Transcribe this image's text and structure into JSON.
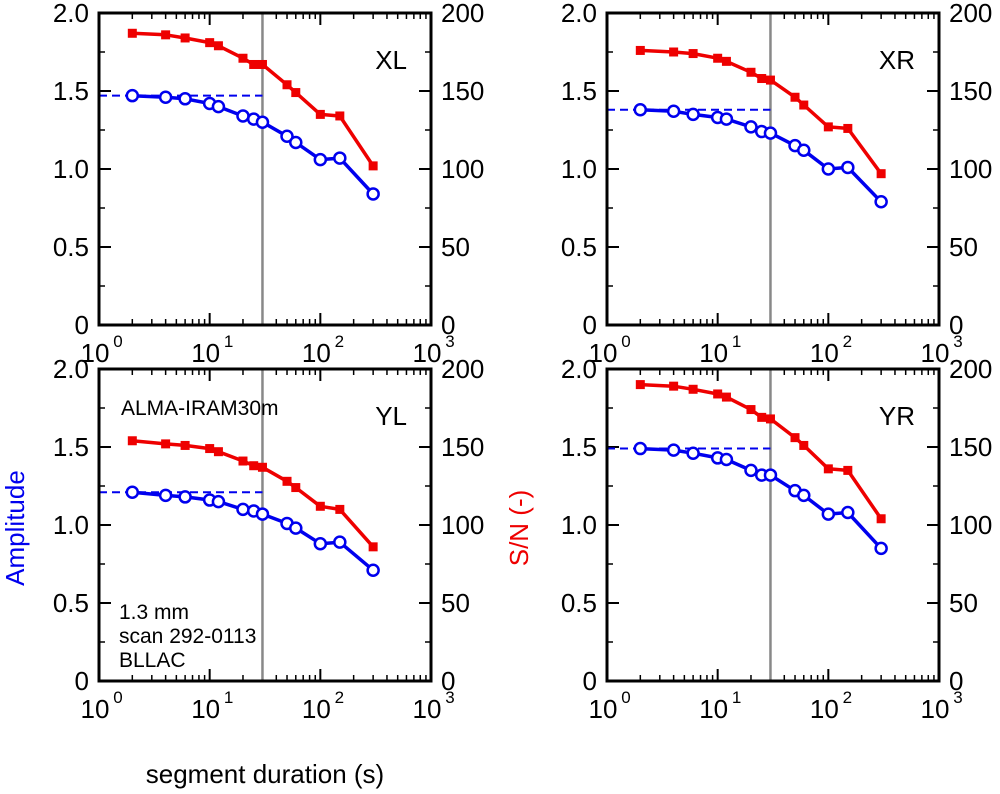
{
  "figure": {
    "xlabel": "segment duration (s)",
    "ylabel_left": "Amplitude",
    "ylabel_right": "S/N (-)",
    "ylabel_left_color": "#0000ee",
    "ylabel_right_color": "#ee0000"
  },
  "chart_data": [
    {
      "type": "line",
      "panel_label": "XL",
      "xscale": "log",
      "xlim": [
        1,
        1000
      ],
      "x_ticks": [
        {
          "base": "10",
          "exp": "0"
        },
        {
          "base": "10",
          "exp": "1"
        },
        {
          "base": "10",
          "exp": "2"
        },
        {
          "base": "10",
          "exp": "3"
        }
      ],
      "ylim_left": [
        0,
        2.0
      ],
      "ylim_right": [
        0,
        200
      ],
      "left_ticks": [
        "0",
        "0.5",
        "1.0",
        "1.5",
        "2.0"
      ],
      "right_ticks": [
        "0",
        "50",
        "100",
        "150",
        "200"
      ],
      "vline_x": 30,
      "hline": {
        "y": 1.47,
        "x_range": [
          1,
          30
        ]
      },
      "annotations": [],
      "series": [
        {
          "name": "Amplitude",
          "axis": "left",
          "color": "#0000ee",
          "marker": "open-circle",
          "x": [
            2,
            4,
            6,
            10,
            12,
            20,
            25,
            30,
            50,
            60,
            100,
            150,
            300
          ],
          "y": [
            1.47,
            1.46,
            1.45,
            1.42,
            1.4,
            1.34,
            1.32,
            1.3,
            1.21,
            1.17,
            1.06,
            1.07,
            0.84
          ]
        },
        {
          "name": "S/N",
          "axis": "right",
          "color": "#ee0000",
          "marker": "filled-square",
          "x": [
            2,
            4,
            6,
            10,
            12,
            20,
            25,
            30,
            50,
            60,
            100,
            150,
            300
          ],
          "y": [
            187,
            186,
            184,
            181,
            179,
            171,
            167,
            167,
            154,
            149,
            135,
            134,
            102
          ]
        }
      ]
    },
    {
      "type": "line",
      "panel_label": "XR",
      "xscale": "log",
      "xlim": [
        1,
        1000
      ],
      "x_ticks": [
        {
          "base": "10",
          "exp": "0"
        },
        {
          "base": "10",
          "exp": "1"
        },
        {
          "base": "10",
          "exp": "2"
        },
        {
          "base": "10",
          "exp": "3"
        }
      ],
      "ylim_left": [
        0,
        2.0
      ],
      "ylim_right": [
        0,
        200
      ],
      "left_ticks": [
        "0",
        "0.5",
        "1.0",
        "1.5",
        "2.0"
      ],
      "right_ticks": [
        "0",
        "50",
        "100",
        "150",
        "200"
      ],
      "vline_x": 30,
      "hline": {
        "y": 1.38,
        "x_range": [
          1,
          30
        ]
      },
      "annotations": [],
      "series": [
        {
          "name": "Amplitude",
          "axis": "left",
          "color": "#0000ee",
          "marker": "open-circle",
          "x": [
            2,
            4,
            6,
            10,
            12,
            20,
            25,
            30,
            50,
            60,
            100,
            150,
            300
          ],
          "y": [
            1.38,
            1.37,
            1.35,
            1.33,
            1.32,
            1.27,
            1.24,
            1.23,
            1.15,
            1.12,
            1.0,
            1.01,
            0.79
          ]
        },
        {
          "name": "S/N",
          "axis": "right",
          "color": "#ee0000",
          "marker": "filled-square",
          "x": [
            2,
            4,
            6,
            10,
            12,
            20,
            25,
            30,
            50,
            60,
            100,
            150,
            300
          ],
          "y": [
            176,
            175,
            174,
            171,
            169,
            162,
            158,
            157,
            146,
            141,
            127,
            126,
            97
          ]
        }
      ]
    },
    {
      "type": "line",
      "panel_label": "YL",
      "xscale": "log",
      "xlim": [
        1,
        1000
      ],
      "x_ticks": [
        {
          "base": "10",
          "exp": "0"
        },
        {
          "base": "10",
          "exp": "1"
        },
        {
          "base": "10",
          "exp": "2"
        },
        {
          "base": "10",
          "exp": "3"
        }
      ],
      "ylim_left": [
        0,
        2.0
      ],
      "ylim_right": [
        0,
        200
      ],
      "left_ticks": [
        "0",
        "0.5",
        "1.0",
        "1.5",
        "2.0"
      ],
      "right_ticks": [
        "0",
        "50",
        "100",
        "150",
        "200"
      ],
      "vline_x": 30,
      "hline": {
        "y": 1.21,
        "x_range": [
          1,
          30
        ]
      },
      "annotations": [
        {
          "text": "ALMA-IRAM30m",
          "pos": "top-left"
        },
        {
          "text": "1.3 mm",
          "pos": "bottom-left-1"
        },
        {
          "text": "scan 292-0113",
          "pos": "bottom-left-2"
        },
        {
          "text": "BLLAC",
          "pos": "bottom-left-3"
        }
      ],
      "series": [
        {
          "name": "Amplitude",
          "axis": "left",
          "color": "#0000ee",
          "marker": "open-circle",
          "x": [
            2,
            4,
            6,
            10,
            12,
            20,
            25,
            30,
            50,
            60,
            100,
            150,
            300
          ],
          "y": [
            1.21,
            1.19,
            1.18,
            1.16,
            1.15,
            1.1,
            1.09,
            1.07,
            1.01,
            0.98,
            0.88,
            0.89,
            0.71
          ]
        },
        {
          "name": "S/N",
          "axis": "right",
          "color": "#ee0000",
          "marker": "filled-square",
          "x": [
            2,
            4,
            6,
            10,
            12,
            20,
            25,
            30,
            50,
            60,
            100,
            150,
            300
          ],
          "y": [
            154,
            152,
            151,
            149,
            147,
            141,
            138,
            137,
            128,
            124,
            112,
            110,
            86
          ]
        }
      ]
    },
    {
      "type": "line",
      "panel_label": "YR",
      "xscale": "log",
      "xlim": [
        1,
        1000
      ],
      "x_ticks": [
        {
          "base": "10",
          "exp": "0"
        },
        {
          "base": "10",
          "exp": "1"
        },
        {
          "base": "10",
          "exp": "2"
        },
        {
          "base": "10",
          "exp": "3"
        }
      ],
      "ylim_left": [
        0,
        2.0
      ],
      "ylim_right": [
        0,
        200
      ],
      "left_ticks": [
        "0",
        "0.5",
        "1.0",
        "1.5",
        "2.0"
      ],
      "right_ticks": [
        "0",
        "50",
        "100",
        "150",
        "200"
      ],
      "vline_x": 30,
      "hline": {
        "y": 1.49,
        "x_range": [
          1,
          30
        ]
      },
      "annotations": [],
      "series": [
        {
          "name": "Amplitude",
          "axis": "left",
          "color": "#0000ee",
          "marker": "open-circle",
          "x": [
            2,
            4,
            6,
            10,
            12,
            20,
            25,
            30,
            50,
            60,
            100,
            150,
            300
          ],
          "y": [
            1.49,
            1.48,
            1.46,
            1.43,
            1.42,
            1.35,
            1.32,
            1.32,
            1.22,
            1.19,
            1.07,
            1.08,
            0.85
          ]
        },
        {
          "name": "S/N",
          "axis": "right",
          "color": "#ee0000",
          "marker": "filled-square",
          "x": [
            2,
            4,
            6,
            10,
            12,
            20,
            25,
            30,
            50,
            60,
            100,
            150,
            300
          ],
          "y": [
            190,
            189,
            187,
            184,
            182,
            174,
            169,
            168,
            156,
            151,
            136,
            135,
            104
          ]
        }
      ]
    }
  ]
}
